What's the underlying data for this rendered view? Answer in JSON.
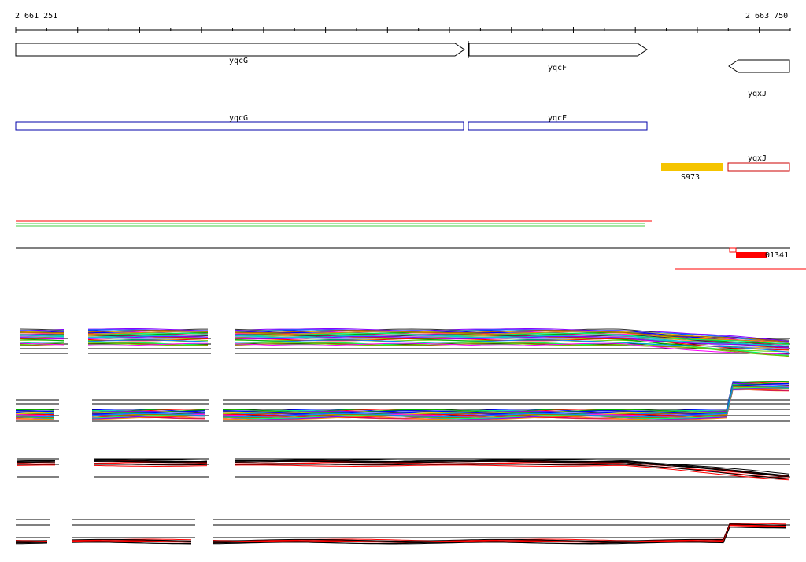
{
  "ruler": {
    "start_label": "2 661 251",
    "end_label": "2 663 750"
  },
  "genes": [
    {
      "name": "yqcG",
      "strand": "+"
    },
    {
      "name": "yqcF",
      "strand": "+"
    },
    {
      "name": "yqxJ",
      "strand": "-"
    }
  ],
  "cds": [
    {
      "name": "yqcG",
      "color": "#0000aa"
    },
    {
      "name": "yqcF",
      "color": "#0000aa"
    },
    {
      "name": "yqxJ",
      "color": "#cc0000"
    }
  ],
  "regulatory_feature": {
    "name": "S973",
    "color": "#f5c400"
  },
  "transcript_feature": {
    "name": "01341",
    "color": "#ff0000"
  },
  "colors": {
    "palette": [
      "#ff0000",
      "#00aa00",
      "#0000ff",
      "#ff00ff",
      "#00cccc",
      "#ff8800",
      "#8800ff",
      "#00ff66",
      "#aa6600",
      "#0088ff",
      "#cc0066",
      "#66cc00",
      "#ffcc00",
      "#333333",
      "#9999ff"
    ],
    "reference": "#000000",
    "highlight": "#ff0000",
    "green_track": "#44cc44"
  }
}
